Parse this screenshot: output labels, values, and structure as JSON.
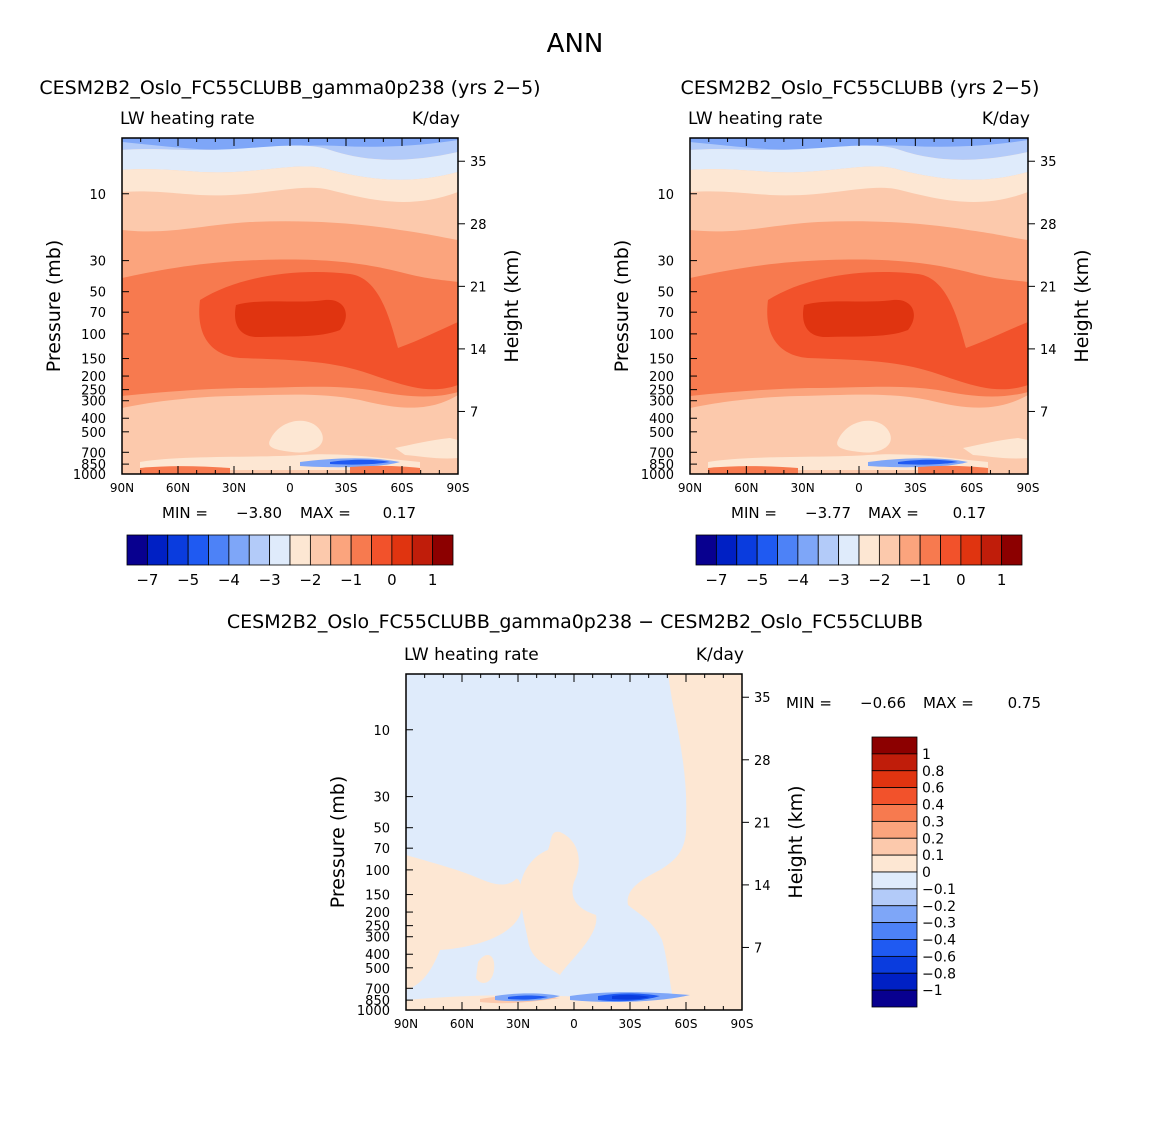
{
  "figure_title": "ANN",
  "colors": {
    "full_scale": [
      "#08008f",
      "#0020c4",
      "#0a3cde",
      "#1f5af2",
      "#4d82f7",
      "#7ea6f8",
      "#b3cbf9",
      "#dfebfb",
      "#fde7d3",
      "#fcc9ac",
      "#fba47d",
      "#f77a4f",
      "#f2522b",
      "#e03410",
      "#c01d0a",
      "#8c0000"
    ],
    "diff_scale": [
      "#8c0000",
      "#c01d0a",
      "#e03410",
      "#f2522b",
      "#f77a4f",
      "#fba47d",
      "#fcc9ac",
      "#fde7d3",
      "#dfebfb",
      "#b3cbf9",
      "#7ea6f8",
      "#4d82f7",
      "#1f5af2",
      "#0a3cde",
      "#0020c4",
      "#08008f"
    ]
  },
  "chart_data": [
    {
      "type": "heatmap",
      "title": "CESM2B2_Oslo_FC55CLUBB_gamma0p238 (yrs 2−5)",
      "left_label": "LW heating rate",
      "right_label": "K/day",
      "xlabel": "",
      "ylabel": "Pressure (mb)",
      "y2label": "Height (km)",
      "x_ticks": [
        "90N",
        "60N",
        "30N",
        "0",
        "30S",
        "60S",
        "90S"
      ],
      "y_ticks": [
        "10",
        "30",
        "50",
        "70",
        "100",
        "150",
        "200",
        "250",
        "300",
        "400",
        "500",
        "700",
        "850",
        "1000"
      ],
      "y_log": true,
      "ylim": [
        1000,
        4
      ],
      "height_ticks": [
        "35",
        "28",
        "21",
        "14",
        "7"
      ],
      "min_label": "MIN =",
      "min_value": "−3.80",
      "max_label": "MAX =",
      "max_value": "0.17",
      "colorbar_labels": [
        "−7",
        "−5",
        "−4",
        "−3",
        "−2",
        "−1",
        "0",
        "1"
      ],
      "colorbar_orientation": "horizontal"
    },
    {
      "type": "heatmap",
      "title": "CESM2B2_Oslo_FC55CLUBB (yrs 2−5)",
      "left_label": "LW heating rate",
      "right_label": "K/day",
      "xlabel": "",
      "ylabel": "Pressure (mb)",
      "y2label": "Height (km)",
      "x_ticks": [
        "90N",
        "60N",
        "30N",
        "0",
        "30S",
        "60S",
        "90S"
      ],
      "y_ticks": [
        "10",
        "30",
        "50",
        "70",
        "100",
        "150",
        "200",
        "250",
        "300",
        "400",
        "500",
        "700",
        "850",
        "1000"
      ],
      "y_log": true,
      "ylim": [
        1000,
        4
      ],
      "height_ticks": [
        "35",
        "28",
        "21",
        "14",
        "7"
      ],
      "min_label": "MIN =",
      "min_value": "−3.77",
      "max_label": "MAX =",
      "max_value": "0.17",
      "colorbar_labels": [
        "−7",
        "−5",
        "−4",
        "−3",
        "−2",
        "−1",
        "0",
        "1"
      ],
      "colorbar_orientation": "horizontal"
    },
    {
      "type": "heatmap",
      "title": "CESM2B2_Oslo_FC55CLUBB_gamma0p238 − CESM2B2_Oslo_FC55CLUBB",
      "left_label": "LW heating rate",
      "right_label": "K/day",
      "xlabel": "",
      "ylabel": "Pressure (mb)",
      "y2label": "Height (km)",
      "x_ticks": [
        "90N",
        "60N",
        "30N",
        "0",
        "30S",
        "60S",
        "90S"
      ],
      "y_ticks": [
        "10",
        "30",
        "50",
        "70",
        "100",
        "150",
        "200",
        "250",
        "300",
        "400",
        "500",
        "700",
        "850",
        "1000"
      ],
      "y_log": true,
      "ylim": [
        1000,
        4
      ],
      "height_ticks": [
        "35",
        "28",
        "21",
        "14",
        "7"
      ],
      "min_label": "MIN =",
      "min_value": "−0.66",
      "max_label": "MAX =",
      "max_value": "0.75",
      "colorbar_labels": [
        "1",
        "0.8",
        "0.6",
        "0.4",
        "0.3",
        "0.2",
        "0.1",
        "0",
        "−0.1",
        "−0.2",
        "−0.3",
        "−0.4",
        "−0.6",
        "−0.8",
        "−1"
      ],
      "colorbar_orientation": "vertical"
    }
  ]
}
